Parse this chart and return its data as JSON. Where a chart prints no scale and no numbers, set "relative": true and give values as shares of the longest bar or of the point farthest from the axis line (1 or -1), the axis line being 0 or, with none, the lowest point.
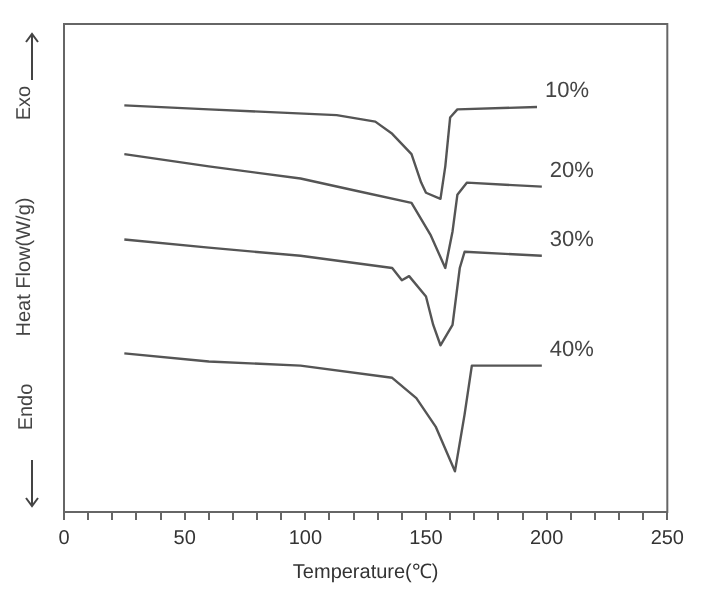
{
  "chart_data": {
    "type": "line",
    "relative": true,
    "xlabel": "Temperature(℃)",
    "ylabel": "Heat Flow(W/g)",
    "annotations": [
      "Exo",
      "Endo"
    ],
    "xlim": [
      0,
      250
    ],
    "xticks": [
      0,
      {
        "value": 10,
        "label": null
      },
      {
        "value": 20,
        "label": null
      },
      {
        "value": 30,
        "label": null
      },
      {
        "value": 40,
        "label": null
      },
      50,
      {
        "value": 60,
        "label": null
      },
      {
        "value": 70,
        "label": null
      },
      {
        "value": 80,
        "label": null
      },
      {
        "value": 90,
        "label": null
      },
      100,
      {
        "value": 110,
        "label": null
      },
      {
        "value": 120,
        "label": null
      },
      {
        "value": 130,
        "label": null
      },
      {
        "value": 140,
        "label": null
      },
      150,
      {
        "value": 160,
        "label": null
      },
      {
        "value": 170,
        "label": null
      },
      {
        "value": 180,
        "label": null
      },
      {
        "value": 190,
        "label": null
      },
      200,
      {
        "value": 210,
        "label": null
      },
      {
        "value": 220,
        "label": null
      },
      {
        "value": 230,
        "label": null
      },
      {
        "value": 240,
        "label": null
      },
      250
    ],
    "grid": false,
    "legend": false,
    "marker": "none",
    "line_style": "solid",
    "series": [
      {
        "name": "10%",
        "color": "#555555",
        "x": [
          25,
          60,
          113,
          129,
          136,
          144,
          148,
          150,
          156,
          158,
          160,
          163,
          196
        ],
        "values": [
          1.0,
          0.99,
          0.976,
          0.96,
          0.93,
          0.88,
          0.81,
          0.785,
          0.77,
          0.85,
          0.97,
          0.99,
          0.996
        ]
      },
      {
        "name": "20%",
        "color": "#555555",
        "x": [
          25,
          60,
          98,
          121,
          144,
          152,
          158,
          161,
          163,
          167,
          198
        ],
        "values": [
          0.88,
          0.85,
          0.82,
          0.79,
          0.76,
          0.68,
          0.6,
          0.69,
          0.78,
          0.81,
          0.8
        ]
      },
      {
        "name": "30%",
        "color": "#555555",
        "x": [
          25,
          60,
          98,
          136,
          140,
          143,
          150,
          153,
          156,
          161,
          164,
          166,
          198
        ],
        "values": [
          0.67,
          0.65,
          0.63,
          0.6,
          0.57,
          0.58,
          0.53,
          0.46,
          0.41,
          0.46,
          0.6,
          0.64,
          0.63
        ]
      },
      {
        "name": "40%",
        "color": "#555555",
        "x": [
          25,
          60,
          98,
          136,
          146,
          154,
          162,
          166,
          169,
          198
        ],
        "values": [
          0.39,
          0.37,
          0.36,
          0.33,
          0.28,
          0.21,
          0.1,
          0.24,
          0.36,
          0.36
        ]
      }
    ]
  }
}
